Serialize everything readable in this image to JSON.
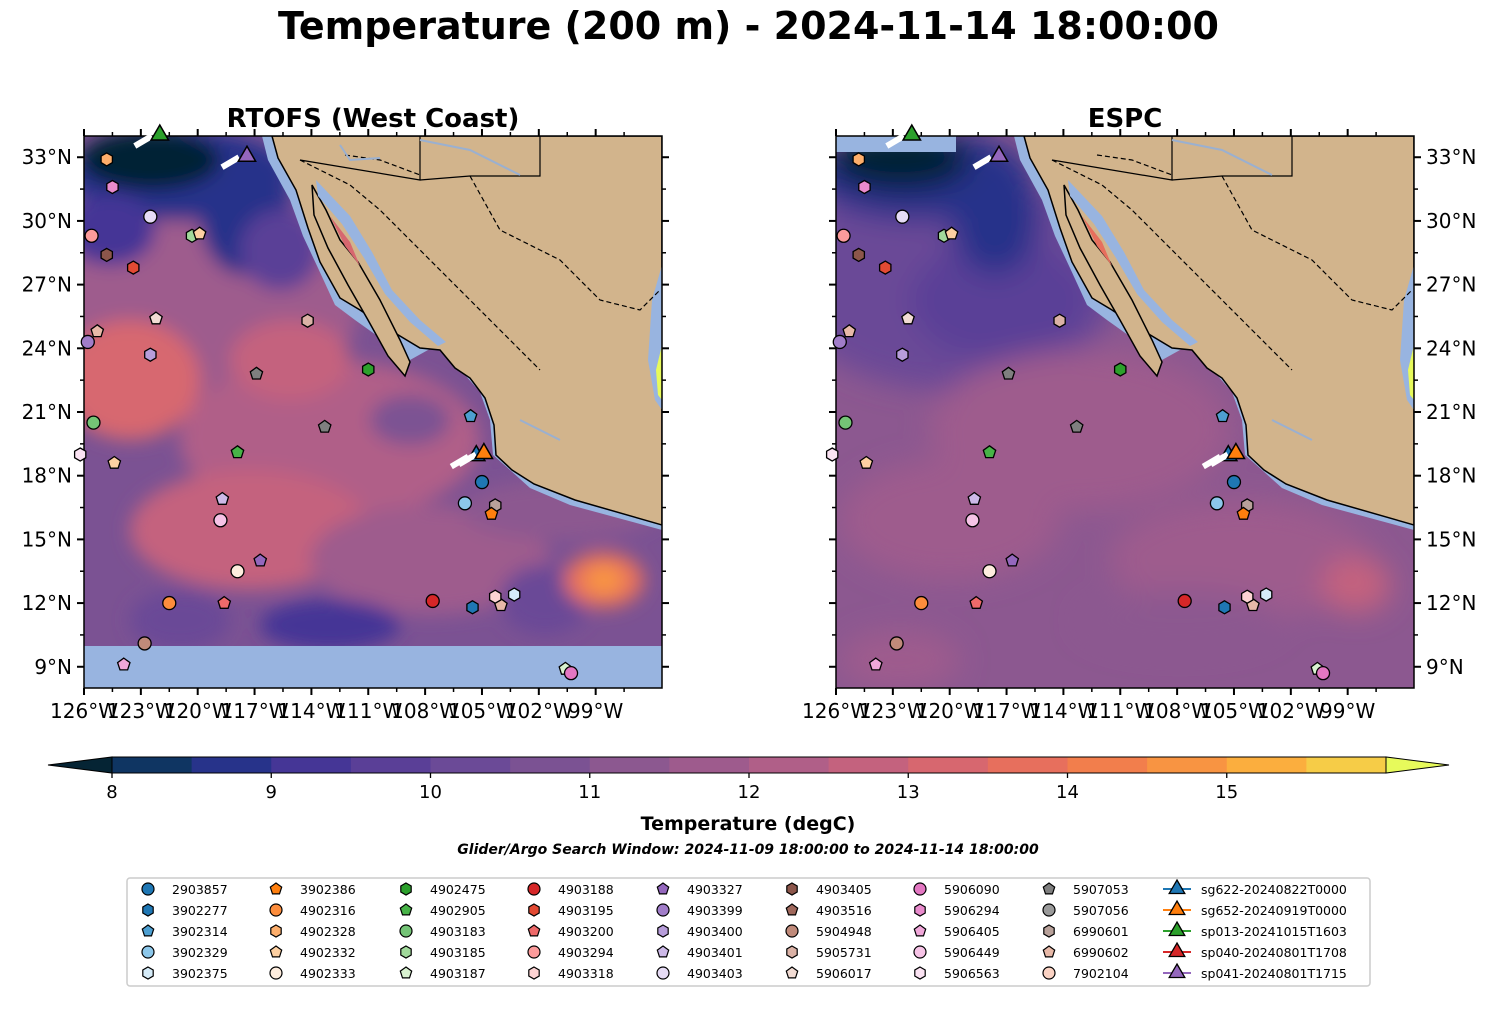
{
  "title": "Temperature (200 m) - 2024-11-14 18:00:00",
  "chart_data": {
    "type": "heatmap",
    "panels": [
      {
        "title": "RTOFS (West Coast)",
        "source": "RTOFS"
      },
      {
        "title": "ESPC",
        "source": "ESPC"
      }
    ],
    "lon_range": [
      -126,
      -95.5
    ],
    "lat_range": [
      8,
      34
    ],
    "lon_ticks": [
      "126°W",
      "123°W",
      "120°W",
      "117°W",
      "114°W",
      "111°W",
      "108°W",
      "105°W",
      "102°W",
      "99°W"
    ],
    "lat_ticks": [
      "9°N",
      "12°N",
      "15°N",
      "18°N",
      "21°N",
      "24°N",
      "27°N",
      "30°N",
      "33°N"
    ],
    "colorbar": {
      "label": "Temperature (degC)",
      "min": 7.5,
      "max": 15.5,
      "step": 0.5,
      "ticks": [
        8,
        9,
        10,
        11,
        12,
        13,
        14,
        15
      ],
      "extend": "both",
      "colors": [
        "#052434",
        "#0f3562",
        "#27338a",
        "#453696",
        "#5a3f97",
        "#6b4a97",
        "#7b5293",
        "#8c5890",
        "#9e5b8d",
        "#b05f88",
        "#c4627e",
        "#d7676f",
        "#e76f5d",
        "#f27e4c",
        "#f89442",
        "#fbae3e",
        "#f6cc47",
        "#e7fa5b"
      ]
    },
    "search_window": "Glider/Argo Search Window: 2024-11-09 18:00:00 to 2024-11-14 18:00:00",
    "legend": [
      {
        "name": "2903857",
        "marker": "circle",
        "color": "#1f77b4"
      },
      {
        "name": "3902277",
        "marker": "hexagon",
        "color": "#1f77b4"
      },
      {
        "name": "3902314",
        "marker": "pentagon",
        "color": "#4d9fd1"
      },
      {
        "name": "3902329",
        "marker": "circle",
        "color": "#8cc7ea"
      },
      {
        "name": "3902375",
        "marker": "hexagon",
        "color": "#d6ecf9"
      },
      {
        "name": "3902386",
        "marker": "pentagon",
        "color": "#ff7f0e"
      },
      {
        "name": "4902316",
        "marker": "circle",
        "color": "#fd8d3c"
      },
      {
        "name": "4902328",
        "marker": "hexagon",
        "color": "#fdae6b"
      },
      {
        "name": "4902332",
        "marker": "pentagon",
        "color": "#fdd0a2"
      },
      {
        "name": "4902333",
        "marker": "circle",
        "color": "#feedde"
      },
      {
        "name": "4902475",
        "marker": "hexagon",
        "color": "#2ca02c"
      },
      {
        "name": "4902905",
        "marker": "pentagon",
        "color": "#47b347"
      },
      {
        "name": "4903183",
        "marker": "circle",
        "color": "#74c476"
      },
      {
        "name": "4903185",
        "marker": "hexagon",
        "color": "#a1d99b"
      },
      {
        "name": "4903187",
        "marker": "pentagon",
        "color": "#d9f2d0"
      },
      {
        "name": "4903188",
        "marker": "circle",
        "color": "#d62728"
      },
      {
        "name": "4903195",
        "marker": "hexagon",
        "color": "#e34a33"
      },
      {
        "name": "4903200",
        "marker": "pentagon",
        "color": "#ef6a6a"
      },
      {
        "name": "4903294",
        "marker": "circle",
        "color": "#fc9b9b"
      },
      {
        "name": "4903318",
        "marker": "hexagon",
        "color": "#fdd3d3"
      },
      {
        "name": "4903327",
        "marker": "pentagon",
        "color": "#9467bd"
      },
      {
        "name": "4903399",
        "marker": "circle",
        "color": "#a17dc9"
      },
      {
        "name": "4903400",
        "marker": "hexagon",
        "color": "#b79dda"
      },
      {
        "name": "4903401",
        "marker": "pentagon",
        "color": "#cdb9e8"
      },
      {
        "name": "4903403",
        "marker": "circle",
        "color": "#e6dbf5"
      },
      {
        "name": "4903405",
        "marker": "hexagon",
        "color": "#8c564b"
      },
      {
        "name": "4903516",
        "marker": "pentagon",
        "color": "#a0685c"
      },
      {
        "name": "5904948",
        "marker": "circle",
        "color": "#c08a7a"
      },
      {
        "name": "5905731",
        "marker": "hexagon",
        "color": "#dbb2a6"
      },
      {
        "name": "5906017",
        "marker": "pentagon",
        "color": "#f2dcd4"
      },
      {
        "name": "5906090",
        "marker": "circle",
        "color": "#e377c2"
      },
      {
        "name": "5906294",
        "marker": "hexagon",
        "color": "#e98bcd"
      },
      {
        "name": "5906405",
        "marker": "pentagon",
        "color": "#f0a7d9"
      },
      {
        "name": "5906449",
        "marker": "circle",
        "color": "#f6c3e6"
      },
      {
        "name": "5906563",
        "marker": "hexagon",
        "color": "#fbe3f3"
      },
      {
        "name": "5907053",
        "marker": "pentagon",
        "color": "#7f7f7f"
      },
      {
        "name": "5907056",
        "marker": "circle",
        "color": "#9a9a9a"
      },
      {
        "name": "6990601",
        "marker": "hexagon",
        "color": "#b8a19a"
      },
      {
        "name": "6990602",
        "marker": "pentagon",
        "color": "#e8b9a8"
      },
      {
        "name": "7902104",
        "marker": "circle",
        "color": "#fbd3c4"
      },
      {
        "name": "sg622-20240822T0000",
        "marker": "triangle",
        "color": "#1f77b4"
      },
      {
        "name": "sg652-20240919T0000",
        "marker": "triangle",
        "color": "#ff7f0e"
      },
      {
        "name": "sp013-20241015T1603",
        "marker": "triangle",
        "color": "#2ca02c"
      },
      {
        "name": "sp040-20240801T1708",
        "marker": "triangle",
        "color": "#d62728"
      },
      {
        "name": "sp041-20240801T1715",
        "marker": "triangle",
        "color": "#9467bd"
      }
    ],
    "observations": [
      {
        "id": "4902328",
        "lon": -124.8,
        "lat": 32.9
      },
      {
        "id": "5906294",
        "lon": -124.5,
        "lat": 31.6
      },
      {
        "id": "4903403",
        "lon": -122.5,
        "lat": 30.2
      },
      {
        "id": "4903294",
        "lon": -125.6,
        "lat": 29.3
      },
      {
        "id": "4903185",
        "lon": -120.3,
        "lat": 29.3
      },
      {
        "id": "4902332",
        "lon": -119.9,
        "lat": 29.4
      },
      {
        "id": "4903405",
        "lon": -124.8,
        "lat": 28.4
      },
      {
        "id": "4903195",
        "lon": -123.4,
        "lat": 27.8
      },
      {
        "id": "5906017",
        "lon": -122.2,
        "lat": 25.4
      },
      {
        "id": "6990602",
        "lon": -125.3,
        "lat": 24.8
      },
      {
        "id": "4903399",
        "lon": -125.8,
        "lat": 24.3
      },
      {
        "id": "4903400",
        "lon": -122.5,
        "lat": 23.7
      },
      {
        "id": "5905731",
        "lon": -114.2,
        "lat": 25.3
      },
      {
        "id": "5907053",
        "lon": -116.9,
        "lat": 22.8
      },
      {
        "id": "4902475",
        "lon": -111.0,
        "lat": 23.0
      },
      {
        "id": "4903183",
        "lon": -125.5,
        "lat": 20.5
      },
      {
        "id": "5907053",
        "lon": -113.3,
        "lat": 20.3
      },
      {
        "id": "3902314",
        "lon": -105.6,
        "lat": 20.8
      },
      {
        "id": "4902905",
        "lon": -117.9,
        "lat": 19.1
      },
      {
        "id": "5906563",
        "lon": -126.2,
        "lat": 19.0
      },
      {
        "id": "4902332",
        "lon": -124.4,
        "lat": 18.6
      },
      {
        "id": "2903857",
        "lon": -105.0,
        "lat": 17.7
      },
      {
        "id": "4903401",
        "lon": -118.7,
        "lat": 16.9
      },
      {
        "id": "3902329",
        "lon": -105.9,
        "lat": 16.7
      },
      {
        "id": "6990601",
        "lon": -104.3,
        "lat": 16.6
      },
      {
        "id": "3902386",
        "lon": -104.5,
        "lat": 16.2
      },
      {
        "id": "5906449",
        "lon": -118.8,
        "lat": 15.9
      },
      {
        "id": "4903327",
        "lon": -116.7,
        "lat": 14.0
      },
      {
        "id": "4902333",
        "lon": -117.9,
        "lat": 13.5
      },
      {
        "id": "4902316",
        "lon": -121.5,
        "lat": 12.0
      },
      {
        "id": "4903200",
        "lon": -118.6,
        "lat": 12.0
      },
      {
        "id": "4903188",
        "lon": -107.6,
        "lat": 12.1
      },
      {
        "id": "3902277",
        "lon": -105.5,
        "lat": 11.8
      },
      {
        "id": "6990602",
        "lon": -104.0,
        "lat": 11.9
      },
      {
        "id": "4903318",
        "lon": -104.3,
        "lat": 12.3
      },
      {
        "id": "3902375",
        "lon": -103.3,
        "lat": 12.4
      },
      {
        "id": "5904948",
        "lon": -122.8,
        "lat": 10.1
      },
      {
        "id": "5906405",
        "lon": -123.9,
        "lat": 9.1
      },
      {
        "id": "4903187",
        "lon": -100.6,
        "lat": 8.9
      },
      {
        "id": "5906090",
        "lon": -100.3,
        "lat": 8.7
      }
    ],
    "gliders": [
      {
        "id": "sp013-20241015T1603",
        "lon": -122.0,
        "lat": 34.0
      },
      {
        "id": "sp041-20240801T1715",
        "lon": -117.4,
        "lat": 33.0
      },
      {
        "id": "sg622-20240822T0000",
        "lon": -105.3,
        "lat": 18.9
      },
      {
        "id": "sg652-20240919T0000",
        "lon": -104.9,
        "lat": 19.0
      }
    ]
  }
}
